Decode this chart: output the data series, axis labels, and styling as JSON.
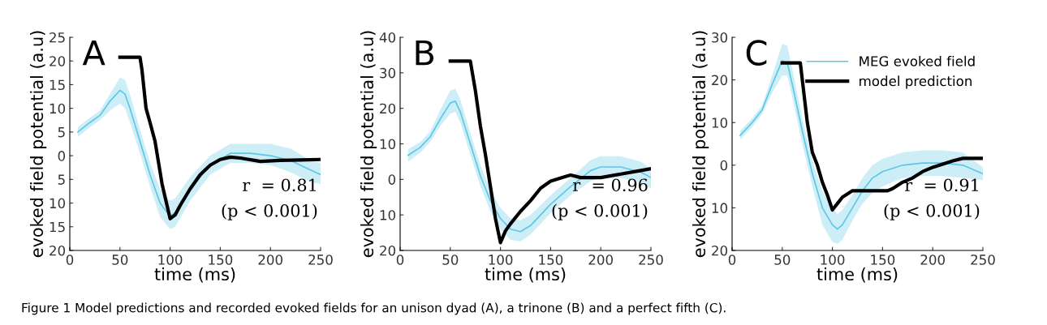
{
  "chart_data": [
    {
      "type": "line",
      "title": "A",
      "xlabel": "time (ms)",
      "ylabel": "evoked field potential (a.u)",
      "xlim": [
        0,
        250
      ],
      "xticks": [
        0,
        50,
        100,
        150,
        200,
        250
      ],
      "ylim": [
        -20,
        25
      ],
      "yticks": [
        {
          "value": -20,
          "label": "20"
        },
        {
          "value": -15,
          "label": "15"
        },
        {
          "value": -10,
          "label": "10"
        },
        {
          "value": -5,
          "label": "5"
        },
        0,
        5,
        10,
        15,
        20,
        25
      ],
      "grid": false,
      "legend": false,
      "series": [
        {
          "color": "#5bc8e6",
          "x": [
            8,
            20,
            30,
            40,
            50,
            55,
            60,
            70,
            80,
            90,
            100,
            105,
            120,
            140,
            160,
            180,
            200,
            220,
            240,
            250
          ],
          "values": [
            5,
            7,
            8.5,
            11.5,
            13.8,
            13,
            10,
            3,
            -4,
            -10,
            -12.8,
            -12,
            -7,
            -2,
            0.5,
            0.5,
            0,
            -1,
            -3,
            -4
          ],
          "lower": [
            4,
            6,
            7.5,
            9.5,
            11,
            10,
            7,
            0.5,
            -6.5,
            -13,
            -15.5,
            -15,
            -9.5,
            -4,
            -1.5,
            -1.5,
            -2,
            -3.5,
            -5.5,
            -6
          ],
          "upper": [
            6,
            8,
            9.5,
            13,
            16.5,
            16,
            13,
            5.5,
            -1.5,
            -7,
            -9.5,
            -9,
            -4.5,
            0,
            2.5,
            2.5,
            2.5,
            1.5,
            -1,
            -1.5
          ]
        },
        {
          "color": "#000000",
          "x": [
            50,
            70,
            72,
            76,
            80,
            85,
            92,
            100,
            105,
            110,
            120,
            130,
            140,
            150,
            160,
            170,
            190,
            210,
            230,
            250
          ],
          "values": [
            20.8,
            20.8,
            18,
            10,
            7,
            3,
            -6,
            -13.3,
            -12.5,
            -10.5,
            -7,
            -4,
            -2,
            -0.8,
            -0.3,
            -0.5,
            -1.2,
            -1,
            -0.9,
            -0.8
          ]
        }
      ],
      "annotations": [
        "r  = 0.81",
        "(p < 0.001)",
        "Figure 1 Model predictions and recorded evoked fields for an unison dyad (A), a trinone (B) and a perfect fifth (C)."
      ]
    },
    {
      "type": "line",
      "title": "B",
      "xlabel": "time (ms)",
      "ylabel": "evoked field potential (a.u)",
      "xlim": [
        0,
        250
      ],
      "xticks": [
        0,
        50,
        100,
        150,
        200,
        250
      ],
      "ylim": [
        -20,
        40
      ],
      "yticks": [
        {
          "value": -20,
          "label": "20"
        },
        {
          "value": -10,
          "label": "10"
        },
        0,
        10,
        20,
        30,
        40
      ],
      "grid": false,
      "legend": false,
      "series": [
        {
          "color": "#5bc8e6",
          "x": [
            8,
            20,
            30,
            40,
            50,
            55,
            60,
            70,
            80,
            90,
            100,
            110,
            120,
            130,
            150,
            170,
            190,
            200,
            220,
            240,
            250
          ],
          "values": [
            6.8,
            9,
            12,
            17,
            21.5,
            22,
            19,
            10,
            1,
            -6,
            -11,
            -14,
            -14.7,
            -13,
            -7,
            -2,
            2.5,
            3.5,
            3.5,
            2,
            0.5
          ],
          "lower": [
            5,
            7.5,
            10.5,
            15,
            18.5,
            19,
            16,
            7,
            -2,
            -9,
            -14,
            -17,
            -17.5,
            -15.5,
            -9.5,
            -4.5,
            -0.5,
            0.5,
            0.5,
            -1,
            -2.5
          ],
          "upper": [
            8.5,
            10.5,
            13.5,
            19.5,
            25,
            25.5,
            22.5,
            13,
            4,
            -3,
            -8,
            -11,
            -11.5,
            -10,
            -4.5,
            0.5,
            5.5,
            6.5,
            6.5,
            5,
            3
          ]
        },
        {
          "color": "#000000",
          "x": [
            50,
            70,
            75,
            80,
            85,
            90,
            95,
            100,
            105,
            110,
            120,
            130,
            140,
            150,
            165,
            170,
            180,
            200,
            220,
            240,
            250
          ],
          "values": [
            33.3,
            33.3,
            25,
            15,
            7,
            -2,
            -11,
            -17.8,
            -14.5,
            -12.5,
            -9,
            -6,
            -2.5,
            -0.5,
            0.8,
            1.2,
            0.5,
            0.5,
            1.5,
            2.5,
            3
          ]
        }
      ],
      "annotations": [
        "r  = 0.96",
        "(p < 0.001)"
      ]
    },
    {
      "type": "line",
      "title": "C",
      "xlabel": "time (ms)",
      "ylabel": "evoked field potential (a.u)",
      "xlim": [
        0,
        250
      ],
      "xticks": [
        0,
        50,
        100,
        150,
        200,
        250
      ],
      "ylim": [
        -20,
        30
      ],
      "yticks": [
        {
          "value": -20,
          "label": "20"
        },
        {
          "value": -10,
          "label": "10"
        },
        0,
        10,
        20,
        30
      ],
      "grid": false,
      "legend": "top right",
      "series": [
        {
          "name": "MEG evoked field",
          "color": "#5bc8e6",
          "x": [
            8,
            20,
            30,
            40,
            50,
            55,
            60,
            70,
            80,
            90,
            100,
            105,
            110,
            120,
            130,
            140,
            150,
            170,
            190,
            210,
            230,
            250
          ],
          "values": [
            7,
            10,
            13,
            19,
            24.5,
            24,
            19,
            8,
            -2,
            -10,
            -14,
            -15,
            -14,
            -10,
            -6,
            -3,
            -1.5,
            0,
            0.5,
            0.5,
            0,
            -2
          ],
          "lower": [
            6,
            9,
            12,
            17,
            21,
            21,
            16,
            5,
            -5,
            -14,
            -18,
            -18.5,
            -17.5,
            -13,
            -9,
            -6.5,
            -5,
            -3,
            -2.5,
            -2.5,
            -3,
            -3.5
          ],
          "upper": [
            8,
            11,
            14,
            21,
            28.5,
            28,
            22.5,
            11,
            1,
            -6,
            -10,
            -11.5,
            -10.5,
            -7,
            -3,
            0,
            1.5,
            3,
            3.5,
            3.5,
            3,
            -0.5
          ]
        },
        {
          "name": "model prediction",
          "color": "#000000",
          "x": [
            50,
            68,
            70,
            75,
            80,
            85,
            90,
            95,
            100,
            105,
            110,
            120,
            130,
            140,
            155,
            160,
            170,
            180,
            190,
            200,
            220,
            230,
            250
          ],
          "values": [
            24,
            24,
            20,
            10,
            3,
            0,
            -4,
            -7,
            -10.5,
            -9,
            -7.5,
            -6,
            -6,
            -6,
            -6,
            -5.5,
            -4,
            -3,
            -1.5,
            -0.5,
            1,
            1.6,
            1.6
          ]
        }
      ],
      "annotations": [
        "r  = 0.91",
        "(p < 0.001)"
      ]
    }
  ]
}
